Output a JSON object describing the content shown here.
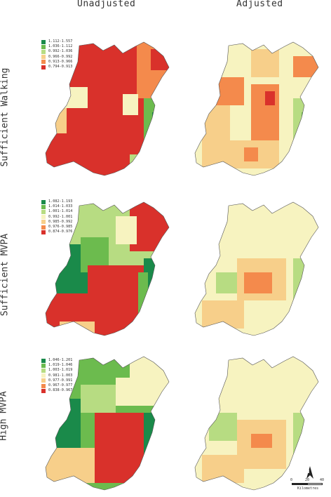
{
  "columns": [
    "Unadjusted",
    "Adjusted"
  ],
  "rows": [
    {
      "label": "Sufficient Walking",
      "legend": [
        "1.112-1.557",
        "1.036-1.112",
        "0.992-1.036",
        "0.966-0.992",
        "0.913-0.966",
        "0.794-0.913"
      ]
    },
    {
      "label": "Sufficient MVPA",
      "legend": [
        "1.082-1.193",
        "1.014-1.033",
        "1.001-1.014",
        "0.992-1.001",
        "0.985-0.992",
        "0.976-0.985",
        "0.874-0.976"
      ]
    },
    {
      "label": "High MVPA",
      "legend": [
        "1.046-1.201",
        "1.019-1.046",
        "1.003-1.019",
        "0.981-1.003",
        "0.977-0.991",
        "0.967-0.977",
        "0.838-0.967"
      ]
    }
  ],
  "colors": {
    "dark_green": "#1a8a4a",
    "green": "#6cbb4e",
    "light_green": "#b7dc82",
    "pale_yellow": "#f7f3c0",
    "light_orange": "#f7cf8a",
    "orange": "#f48a4c",
    "red": "#d9312b"
  },
  "scale": {
    "ticks": [
      "0",
      "20",
      "40"
    ],
    "unit": "Kilometres"
  },
  "north_label": "N"
}
